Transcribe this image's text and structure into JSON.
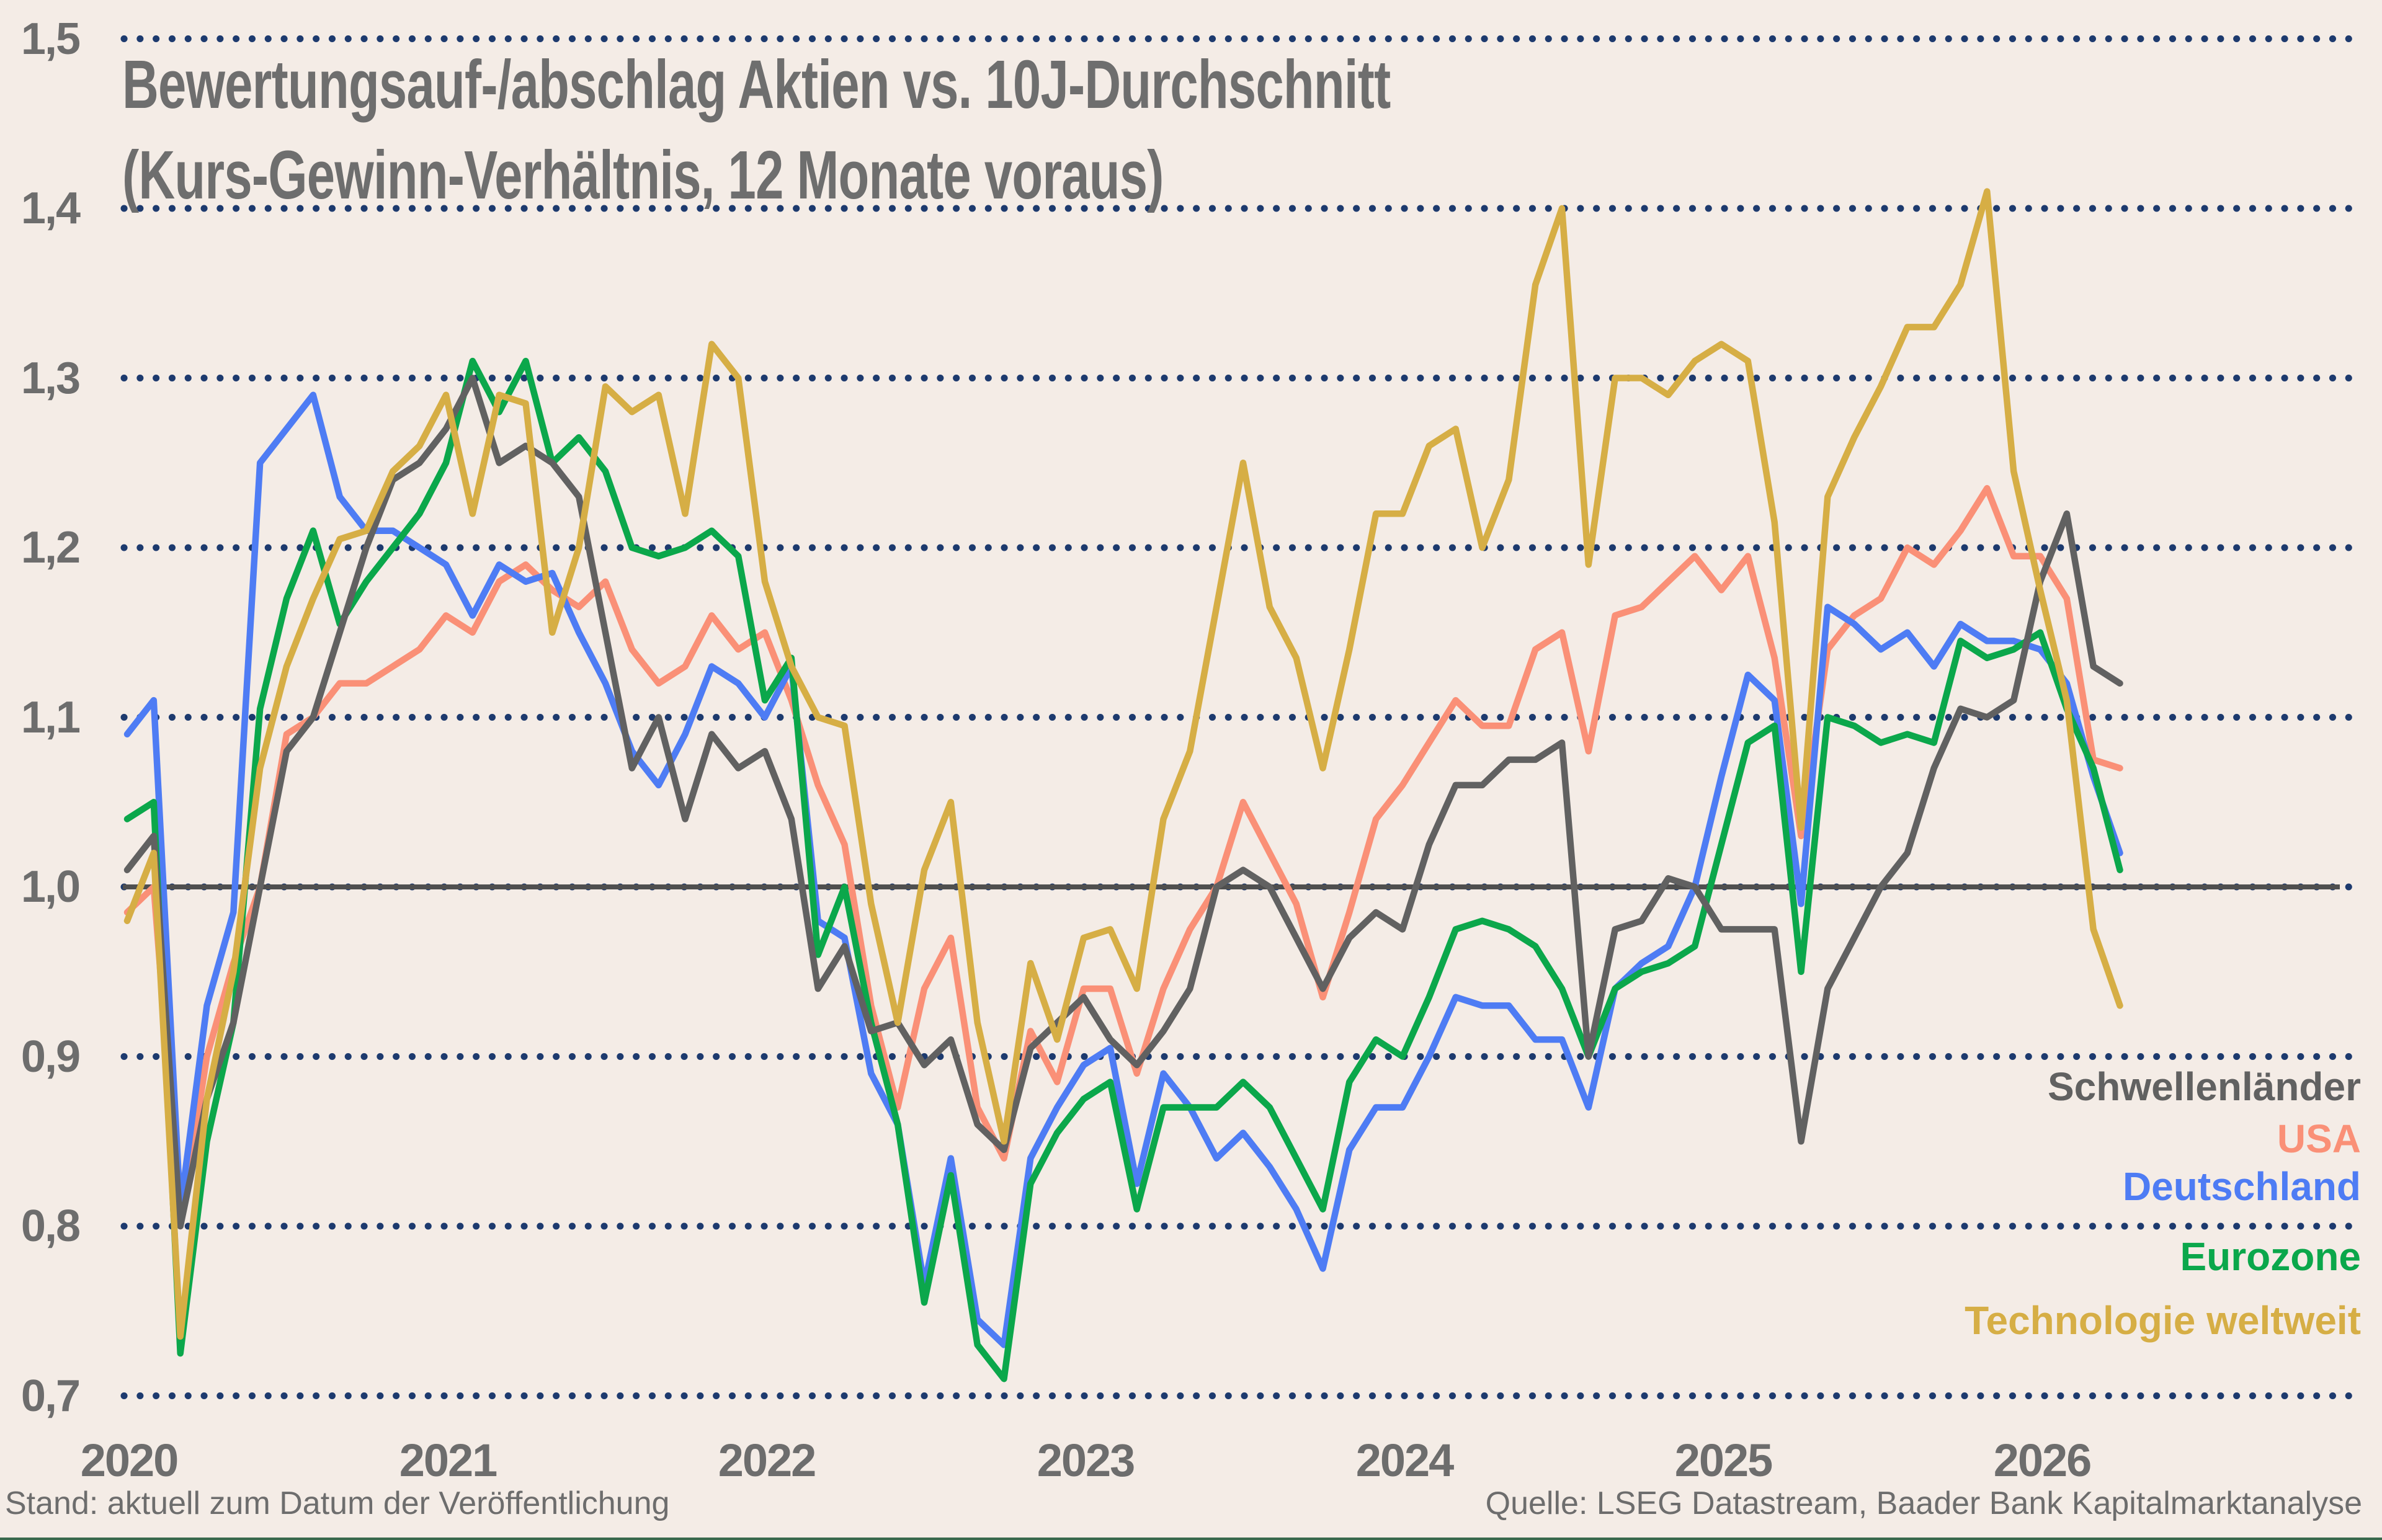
{
  "title_line1": "Bewertungsauf-/abschlag Aktien vs. 10J-Durchschnitt",
  "title_line2": "(Kurs-Gewinn-Verhältnis, 12 Monate voraus)",
  "footer": {
    "left": "Stand: aktuell zum Datum der Veröffentlichung",
    "right": "Quelle: LSEG Datastream, Baader Bank Kapitalmarktanalyse"
  },
  "colors": {
    "background": "#f4ece6",
    "grid_dots": "#1d3a6e",
    "baseline": "#4f4f4f",
    "text": "#6d6d6d",
    "bottom_strip": "#38684c"
  },
  "chart_data": {
    "type": "line",
    "title": "Bewertungsauf-/abschlag Aktien vs. 10J-Durchschnitt (Kurs-Gewinn-Verhältnis, 12 Monate voraus)",
    "xlabel": "",
    "ylabel": "",
    "ylim": [
      0.7,
      1.5
    ],
    "x_start": "2020-01",
    "x_step_months": 1,
    "x_end": "2026-04",
    "grid": "horizontal dotted",
    "legend_position": "inside right",
    "baseline_value": 1.0,
    "y_ticks": [
      {
        "value": 1.5,
        "label": "1,5"
      },
      {
        "value": 1.4,
        "label": "1,4"
      },
      {
        "value": 1.3,
        "label": "1,3"
      },
      {
        "value": 1.2,
        "label": "1,2"
      },
      {
        "value": 1.1,
        "label": "1,1"
      },
      {
        "value": 1.0,
        "label": "1,0"
      },
      {
        "value": 0.9,
        "label": "0,9"
      },
      {
        "value": 0.8,
        "label": "0,8"
      },
      {
        "value": 0.7,
        "label": "0,7"
      }
    ],
    "x_ticks": [
      {
        "label": "2020"
      },
      {
        "label": "2021"
      },
      {
        "label": "2022"
      },
      {
        "label": "2023"
      },
      {
        "label": "2024"
      },
      {
        "label": "2025"
      },
      {
        "label": "2026"
      }
    ],
    "series": [
      {
        "id": "schwellenlaender",
        "name": "Schwellenländer",
        "color": "#616161",
        "values": [
          1.01,
          1.03,
          0.8,
          0.875,
          0.92,
          1.0,
          1.08,
          1.1,
          1.15,
          1.2,
          1.24,
          1.25,
          1.27,
          1.3,
          1.25,
          1.26,
          1.25,
          1.23,
          1.15,
          1.07,
          1.1,
          1.04,
          1.09,
          1.07,
          1.08,
          1.04,
          0.94,
          0.965,
          0.915,
          0.92,
          0.895,
          0.91,
          0.86,
          0.845,
          0.905,
          0.92,
          0.935,
          0.91,
          0.895,
          0.915,
          0.94,
          1.0,
          1.01,
          1.0,
          0.97,
          0.94,
          0.97,
          0.985,
          0.975,
          1.025,
          1.06,
          1.06,
          1.075,
          1.075,
          1.085,
          0.9,
          0.975,
          0.98,
          1.005,
          1.0,
          0.975,
          0.975,
          0.975,
          0.85,
          0.94,
          0.97,
          1.0,
          1.02,
          1.07,
          1.105,
          1.1,
          1.11,
          1.18,
          1.22,
          1.13,
          1.12
        ]
      },
      {
        "id": "usa",
        "name": "USA",
        "color": "#FA9077",
        "values": [
          0.985,
          1.0,
          0.8,
          0.9,
          0.955,
          1.0,
          1.09,
          1.1,
          1.12,
          1.12,
          1.13,
          1.14,
          1.16,
          1.15,
          1.18,
          1.19,
          1.175,
          1.165,
          1.18,
          1.14,
          1.12,
          1.13,
          1.16,
          1.14,
          1.15,
          1.11,
          1.06,
          1.025,
          0.93,
          0.87,
          0.94,
          0.97,
          0.87,
          0.84,
          0.915,
          0.885,
          0.94,
          0.94,
          0.89,
          0.94,
          0.975,
          1.0,
          1.05,
          1.02,
          0.99,
          0.935,
          0.985,
          1.04,
          1.06,
          1.085,
          1.11,
          1.095,
          1.095,
          1.14,
          1.15,
          1.08,
          1.16,
          1.165,
          1.18,
          1.195,
          1.175,
          1.195,
          1.135,
          1.03,
          1.14,
          1.16,
          1.17,
          1.2,
          1.19,
          1.21,
          1.235,
          1.195,
          1.195,
          1.17,
          1.075,
          1.07
        ]
      },
      {
        "id": "deutschland",
        "name": "Deutschland",
        "color": "#4E7CF4",
        "values": [
          1.09,
          1.11,
          0.81,
          0.93,
          0.985,
          1.25,
          1.27,
          1.29,
          1.23,
          1.21,
          1.21,
          1.2,
          1.19,
          1.16,
          1.19,
          1.18,
          1.185,
          1.15,
          1.12,
          1.08,
          1.06,
          1.09,
          1.13,
          1.12,
          1.1,
          1.13,
          0.98,
          0.97,
          0.89,
          0.86,
          0.765,
          0.84,
          0.745,
          0.73,
          0.84,
          0.87,
          0.895,
          0.905,
          0.825,
          0.89,
          0.87,
          0.84,
          0.855,
          0.835,
          0.81,
          0.775,
          0.845,
          0.87,
          0.87,
          0.9,
          0.935,
          0.93,
          0.93,
          0.91,
          0.91,
          0.87,
          0.94,
          0.955,
          0.965,
          1.0,
          1.065,
          1.125,
          1.11,
          0.99,
          1.165,
          1.155,
          1.14,
          1.15,
          1.13,
          1.155,
          1.145,
          1.145,
          1.14,
          1.12,
          1.065,
          1.02
        ]
      },
      {
        "id": "eurozone",
        "name": "Eurozone",
        "color": "#0BA74B",
        "values": [
          1.04,
          1.05,
          0.725,
          0.85,
          0.92,
          1.105,
          1.17,
          1.21,
          1.155,
          1.18,
          1.2,
          1.22,
          1.25,
          1.31,
          1.28,
          1.31,
          1.25,
          1.265,
          1.245,
          1.2,
          1.195,
          1.2,
          1.21,
          1.195,
          1.11,
          1.135,
          0.96,
          1.0,
          0.92,
          0.86,
          0.755,
          0.83,
          0.73,
          0.71,
          0.825,
          0.855,
          0.875,
          0.885,
          0.81,
          0.87,
          0.87,
          0.87,
          0.885,
          0.87,
          0.84,
          0.81,
          0.885,
          0.91,
          0.9,
          0.935,
          0.975,
          0.98,
          0.975,
          0.965,
          0.94,
          0.9,
          0.94,
          0.95,
          0.955,
          0.965,
          1.025,
          1.085,
          1.095,
          0.95,
          1.1,
          1.095,
          1.085,
          1.09,
          1.085,
          1.145,
          1.135,
          1.14,
          1.15,
          1.105,
          1.07,
          1.01
        ]
      },
      {
        "id": "technologie",
        "name": "Technologie weltweit",
        "color": "#D6AE45",
        "values": [
          0.98,
          1.02,
          0.735,
          0.875,
          0.95,
          1.07,
          1.13,
          1.17,
          1.205,
          1.21,
          1.245,
          1.26,
          1.29,
          1.22,
          1.29,
          1.285,
          1.15,
          1.2,
          1.295,
          1.28,
          1.29,
          1.22,
          1.32,
          1.3,
          1.18,
          1.13,
          1.1,
          1.095,
          0.99,
          0.92,
          1.01,
          1.05,
          0.92,
          0.85,
          0.955,
          0.91,
          0.97,
          0.975,
          0.94,
          1.04,
          1.08,
          1.165,
          1.25,
          1.165,
          1.135,
          1.07,
          1.14,
          1.22,
          1.22,
          1.26,
          1.27,
          1.2,
          1.24,
          1.355,
          1.4,
          1.19,
          1.3,
          1.3,
          1.29,
          1.31,
          1.32,
          1.31,
          1.215,
          1.035,
          1.23,
          1.265,
          1.295,
          1.33,
          1.33,
          1.355,
          1.41,
          1.245,
          1.175,
          1.11,
          0.975,
          0.93
        ]
      }
    ]
  }
}
